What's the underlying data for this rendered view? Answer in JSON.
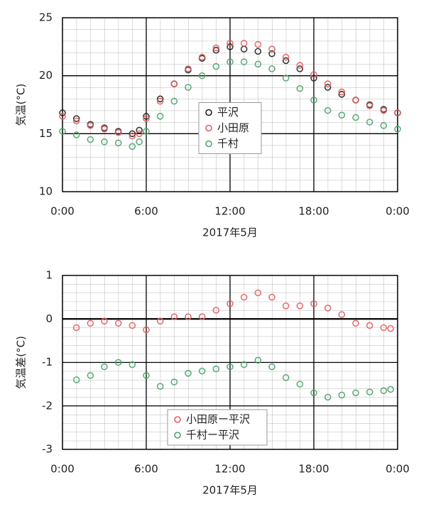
{
  "chart_data": [
    {
      "type": "scatter",
      "ylabel": "気温(°C)",
      "xlabel": "2017年5月",
      "x": [
        0,
        1,
        2,
        3,
        4,
        5,
        5.5,
        6,
        7,
        8,
        9,
        10,
        11,
        12,
        13,
        14,
        15,
        16,
        17,
        18,
        19,
        20,
        21,
        22,
        23,
        24
      ],
      "series": [
        {
          "name": "平沢",
          "color": "#222222",
          "values": [
            16.8,
            16.3,
            15.8,
            15.5,
            15.2,
            15.0,
            15.3,
            16.5,
            18.0,
            19.3,
            20.5,
            21.5,
            22.2,
            22.5,
            22.3,
            22.1,
            21.9,
            21.3,
            20.6,
            19.8,
            19.0,
            18.4,
            17.9,
            17.5,
            17.1,
            16.8
          ]
        },
        {
          "name": "小田原",
          "color": "#e06060",
          "values": [
            16.5,
            16.1,
            15.7,
            15.4,
            15.1,
            14.8,
            15.0,
            16.3,
            17.8,
            19.3,
            20.6,
            21.6,
            22.4,
            22.8,
            22.8,
            22.7,
            22.3,
            21.6,
            20.9,
            20.1,
            19.3,
            18.6,
            17.9,
            17.4,
            17.0,
            16.8
          ]
        },
        {
          "name": "千村",
          "color": "#4fa36e",
          "values": [
            15.2,
            14.9,
            14.5,
            14.3,
            14.2,
            13.9,
            14.3,
            15.2,
            16.5,
            17.8,
            19.0,
            20.0,
            20.8,
            21.2,
            21.2,
            21.0,
            20.6,
            19.8,
            18.9,
            17.9,
            17.0,
            16.6,
            16.4,
            16.0,
            15.7,
            15.4
          ]
        }
      ],
      "xlim": [
        0,
        24
      ],
      "xticks": [
        {
          "value": 0,
          "label": "0:00"
        },
        {
          "value": 6,
          "label": "6:00"
        },
        {
          "value": 12,
          "label": "12:00"
        },
        {
          "value": 18,
          "label": "18:00"
        },
        {
          "value": 24,
          "label": "0:00"
        }
      ],
      "ylim": [
        10,
        25
      ],
      "yticks": [
        10,
        15,
        20,
        25
      ],
      "grid": true,
      "legend": "center"
    },
    {
      "type": "scatter",
      "ylabel": "気温差(°C)",
      "xlabel": "2017年5月",
      "x": [
        1,
        2,
        3,
        4,
        5,
        6,
        7,
        8,
        9,
        10,
        11,
        12,
        13,
        14,
        15,
        16,
        17,
        18,
        19,
        20,
        21,
        22,
        23,
        23.5
      ],
      "series": [
        {
          "name": "小田原ー平沢",
          "color": "#e06060",
          "values": [
            -0.2,
            -0.1,
            -0.05,
            -0.1,
            -0.15,
            -0.25,
            -0.05,
            0.05,
            0.05,
            0.05,
            0.2,
            0.35,
            0.5,
            0.6,
            0.5,
            0.3,
            0.3,
            0.35,
            0.25,
            0.1,
            -0.1,
            -0.15,
            -0.2,
            -0.22
          ]
        },
        {
          "name": "千村ー平沢",
          "color": "#4fa36e",
          "values": [
            -1.4,
            -1.3,
            -1.1,
            -1.0,
            -1.05,
            -1.3,
            -1.55,
            -1.45,
            -1.25,
            -1.2,
            -1.15,
            -1.1,
            -1.05,
            -0.95,
            -1.1,
            -1.35,
            -1.5,
            -1.7,
            -1.8,
            -1.75,
            -1.7,
            -1.68,
            -1.65,
            -1.62
          ]
        }
      ],
      "xlim": [
        0,
        24
      ],
      "xticks": [
        {
          "value": 0,
          "label": "0:00"
        },
        {
          "value": 6,
          "label": "6:00"
        },
        {
          "value": 12,
          "label": "12:00"
        },
        {
          "value": 18,
          "label": "18:00"
        },
        {
          "value": 24,
          "label": "0:00"
        }
      ],
      "ylim": [
        -3,
        1
      ],
      "yticks": [
        -3,
        -2,
        -1,
        0,
        1
      ],
      "grid": true,
      "legend": "lower center"
    }
  ]
}
